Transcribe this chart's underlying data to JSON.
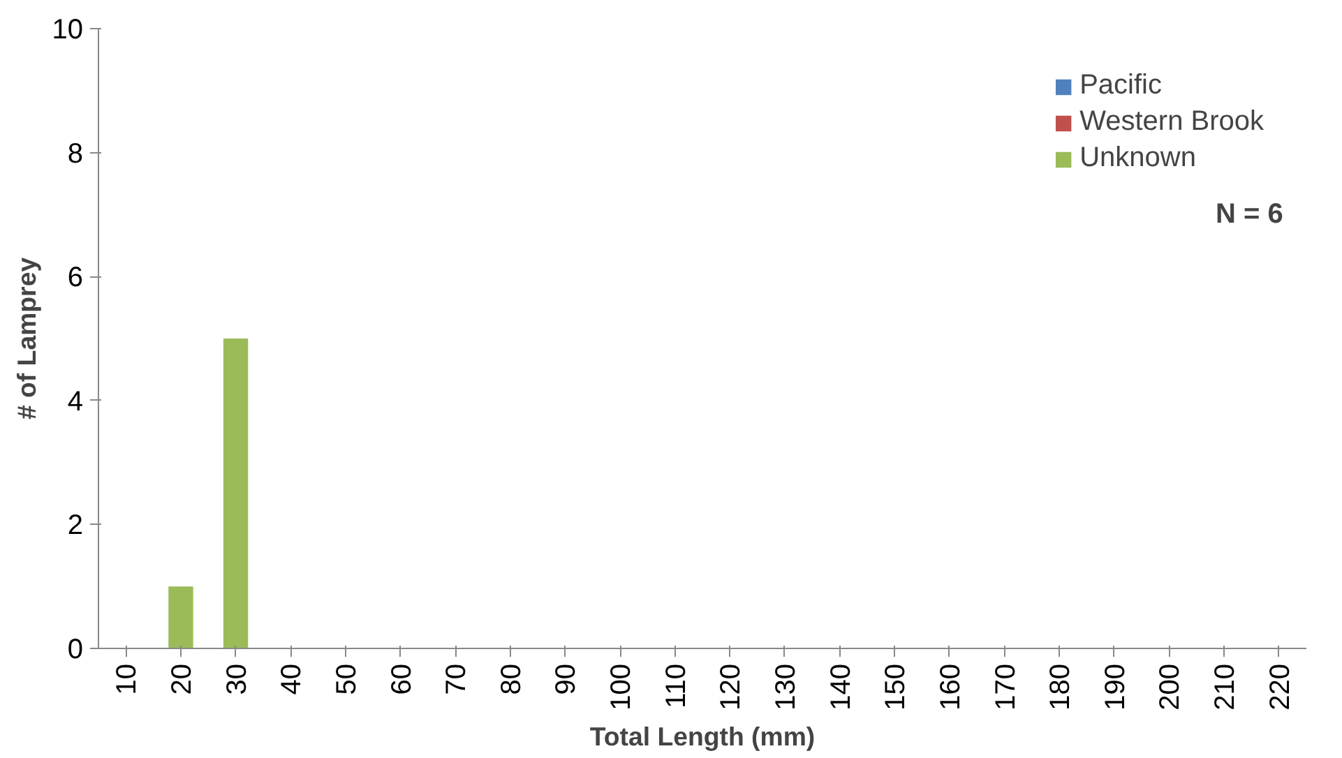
{
  "chart_data": {
    "type": "bar",
    "xlabel": "Total Length (mm)",
    "ylabel": "# of Lamprey",
    "categories": [
      "10",
      "20",
      "30",
      "40",
      "50",
      "60",
      "70",
      "80",
      "90",
      "100",
      "110",
      "120",
      "130",
      "140",
      "150",
      "160",
      "170",
      "180",
      "190",
      "200",
      "210",
      "220"
    ],
    "series": [
      {
        "name": "Pacific",
        "color": "#4f81bd",
        "values": [
          0,
          0,
          0,
          0,
          0,
          0,
          0,
          0,
          0,
          0,
          0,
          0,
          0,
          0,
          0,
          0,
          0,
          0,
          0,
          0,
          0,
          0
        ]
      },
      {
        "name": "Western Brook",
        "color": "#c0504d",
        "values": [
          0,
          0,
          0,
          0,
          0,
          0,
          0,
          0,
          0,
          0,
          0,
          0,
          0,
          0,
          0,
          0,
          0,
          0,
          0,
          0,
          0,
          0
        ]
      },
      {
        "name": "Unknown",
        "color": "#9bbb59",
        "values": [
          0,
          1,
          5,
          0,
          0,
          0,
          0,
          0,
          0,
          0,
          0,
          0,
          0,
          0,
          0,
          0,
          0,
          0,
          0,
          0,
          0,
          0
        ]
      }
    ],
    "ylim": [
      0,
      10
    ],
    "yticks": [
      0,
      2,
      4,
      6,
      8,
      10
    ],
    "grid": false,
    "legend": "top right",
    "annotations": [
      "N = 6"
    ]
  }
}
